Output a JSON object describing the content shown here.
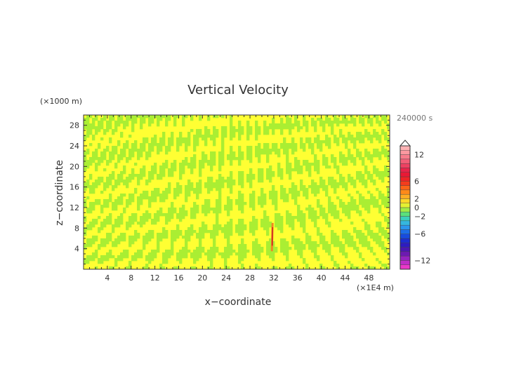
{
  "chart_data": {
    "type": "heatmap",
    "title": "Vertical Velocity",
    "xlabel": "x−coordinate",
    "ylabel": "z−coordinate",
    "x_unit": "(×1E4 m)",
    "y_unit": "(×1000 m)",
    "time_label": "240000 s",
    "xlim": [
      0,
      51.5
    ],
    "ylim": [
      0,
      30
    ],
    "x_ticks": [
      4,
      8,
      12,
      16,
      20,
      24,
      28,
      32,
      36,
      40,
      44,
      48
    ],
    "x_tick_labels": [
      "4",
      "8",
      "12",
      "16",
      "20",
      "24",
      "28",
      "32",
      "36",
      "40",
      "44",
      "48"
    ],
    "y_ticks": [
      4,
      8,
      12,
      16,
      20,
      24,
      28
    ],
    "y_tick_labels": [
      "4",
      "8",
      "12",
      "16",
      "20",
      "24",
      "28"
    ],
    "colorbar": {
      "levels": [
        -14,
        -13,
        -12,
        -11,
        -10,
        -9,
        -8,
        -7,
        -6,
        -5,
        -4,
        -3,
        -2,
        -1,
        0,
        1,
        2,
        3,
        4,
        5,
        6,
        7,
        8,
        9,
        10,
        11,
        12,
        13,
        14
      ],
      "tick_values": [
        12,
        6,
        2,
        0,
        -2,
        -6,
        -12
      ],
      "tick_labels": [
        "12",
        "6",
        "2",
        "0",
        "−2",
        "−6",
        "−12"
      ]
    },
    "field_colors": {
      "near_zero_positive": "#ffff33",
      "near_zero_negative": "#aaee33"
    },
    "features": [
      {
        "kind": "updraft",
        "x": 31.8,
        "z_range": [
          3.5,
          9
        ]
      }
    ]
  }
}
